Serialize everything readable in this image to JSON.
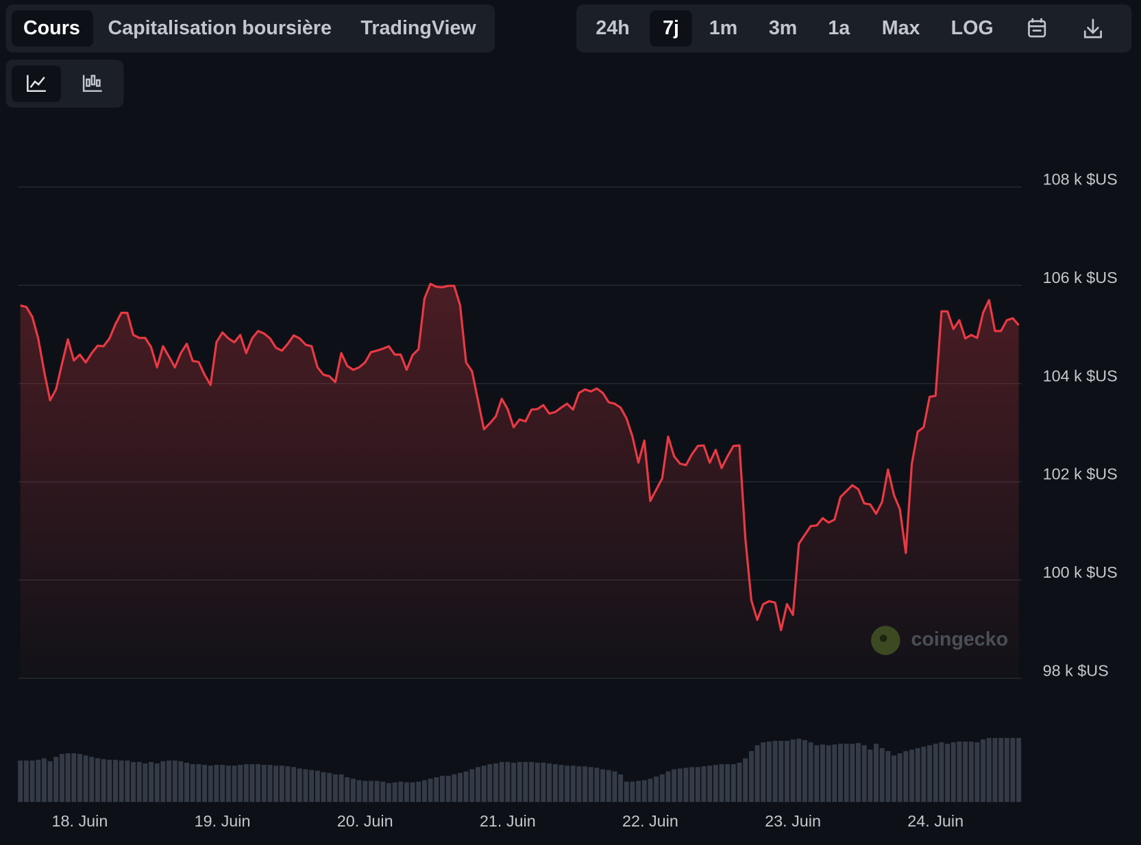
{
  "ui": {
    "tabs": [
      "Cours",
      "Capitalisation boursière",
      "TradingView"
    ],
    "ranges": [
      "24h",
      "7j",
      "1m",
      "3m",
      "1a",
      "Max",
      "LOG"
    ],
    "watermark": "coingecko"
  },
  "chart_data": {
    "type": "line",
    "categories": [
      null,
      null,
      null,
      null,
      null,
      null,
      null,
      null,
      null,
      null,
      "18. Juin",
      null,
      null,
      null,
      null,
      null,
      null,
      null,
      null,
      null,
      null,
      null,
      null,
      null,
      null,
      null,
      null,
      null,
      null,
      null,
      null,
      null,
      null,
      null,
      "19. Juin",
      null,
      null,
      null,
      null,
      null,
      null,
      null,
      null,
      null,
      null,
      null,
      null,
      null,
      null,
      null,
      null,
      null,
      null,
      null,
      null,
      null,
      null,
      null,
      "20. Juin",
      null,
      null,
      null,
      null,
      null,
      null,
      null,
      null,
      null,
      null,
      null,
      null,
      null,
      null,
      null,
      null,
      null,
      null,
      null,
      null,
      null,
      null,
      null,
      "21. Juin",
      null,
      null,
      null,
      null,
      null,
      null,
      null,
      null,
      null,
      null,
      null,
      null,
      null,
      null,
      null,
      null,
      null,
      null,
      null,
      null,
      null,
      null,
      null,
      "22. Juin",
      null,
      null,
      null,
      null,
      null,
      null,
      null,
      null,
      null,
      null,
      null,
      null,
      null,
      null,
      null,
      null,
      null,
      null,
      null,
      null,
      null,
      null,
      null,
      "23. Juin",
      null,
      null,
      null,
      null,
      null,
      null,
      null,
      null,
      null,
      null,
      null,
      null,
      null,
      null,
      null,
      null,
      null,
      null,
      null,
      null,
      null,
      null,
      null,
      "24. Juin",
      null,
      null,
      null,
      null,
      null,
      null,
      null,
      null,
      null,
      null,
      null,
      null,
      null,
      null
    ],
    "values": [
      105590,
      105560,
      105360,
      104920,
      104250,
      103660,
      103880,
      104400,
      104900,
      104470,
      104590,
      104430,
      104620,
      104770,
      104760,
      104920,
      105210,
      105440,
      105440,
      104990,
      104930,
      104930,
      104740,
      104330,
      104760,
      104550,
      104330,
      104620,
      104810,
      104460,
      104440,
      104180,
      103970,
      104840,
      105040,
      104920,
      104840,
      104990,
      104620,
      104920,
      105070,
      105020,
      104920,
      104730,
      104670,
      104810,
      104980,
      104920,
      104790,
      104760,
      104330,
      104180,
      104150,
      104030,
      104620,
      104360,
      104280,
      104330,
      104430,
      104640,
      104670,
      104710,
      104760,
      104590,
      104590,
      104280,
      104580,
      104700,
      105730,
      106030,
      105970,
      105960,
      105990,
      105990,
      105590,
      104430,
      104250,
      103660,
      103070,
      103190,
      103330,
      103690,
      103480,
      103110,
      103270,
      103230,
      103470,
      103480,
      103560,
      103390,
      103420,
      103510,
      103590,
      103470,
      103810,
      103880,
      103840,
      103900,
      103810,
      103620,
      103590,
      103510,
      103290,
      102920,
      102390,
      102840,
      101610,
      101840,
      102070,
      102920,
      102520,
      102370,
      102340,
      102560,
      102730,
      102740,
      102390,
      102650,
      102280,
      102520,
      102730,
      102740,
      100840,
      99590,
      99190,
      99510,
      99570,
      99540,
      98980,
      99510,
      99290,
      100740,
      100920,
      101100,
      101110,
      101260,
      101170,
      101230,
      101690,
      101810,
      101930,
      101850,
      101560,
      101540,
      101350,
      101590,
      102250,
      101730,
      101440,
      100550,
      102360,
      103020,
      103110,
      103730,
      103750,
      105470,
      105470,
      105110,
      105290,
      104920,
      104990,
      104930,
      105440,
      105700,
      105070,
      105070,
      105290,
      105330,
      105190
    ],
    "color": "#ea3943",
    "ylim": [
      98000,
      108000
    ],
    "yticks": [
      {
        "value": 98000,
        "label": "98 k $US"
      },
      {
        "value": 100000,
        "label": "100 k $US"
      },
      {
        "value": 102000,
        "label": "102 k $US"
      },
      {
        "value": 104000,
        "label": "104 k $US"
      },
      {
        "value": 106000,
        "label": "106 k $US"
      },
      {
        "value": 108000,
        "label": "108 k $US"
      }
    ],
    "grid": true,
    "volume": {
      "color": "#343b46",
      "ylim": [
        0,
        100
      ],
      "values": [
        57,
        57,
        57,
        58,
        60,
        56,
        62,
        66,
        67,
        67,
        66,
        64,
        62,
        60,
        59,
        58,
        58,
        57,
        57,
        55,
        55,
        53,
        55,
        53,
        56,
        57,
        57,
        56,
        54,
        52,
        52,
        51,
        50,
        51,
        51,
        50,
        50,
        51,
        52,
        52,
        52,
        51,
        51,
        50,
        50,
        49,
        48,
        46,
        45,
        44,
        43,
        41,
        40,
        38,
        38,
        34,
        32,
        30,
        29,
        29,
        29,
        28,
        26,
        27,
        28,
        27,
        27,
        28,
        30,
        32,
        34,
        36,
        36,
        38,
        40,
        42,
        45,
        48,
        50,
        52,
        53,
        55,
        55,
        54,
        55,
        55,
        55,
        54,
        54,
        53,
        52,
        51,
        50,
        50,
        49,
        49,
        48,
        47,
        45,
        44,
        42,
        38,
        28,
        28,
        29,
        30,
        32,
        35,
        38,
        42,
        45,
        46,
        47,
        48,
        48,
        49,
        50,
        51,
        52,
        52,
        52,
        54,
        60,
        70,
        78,
        82,
        83,
        84,
        84,
        84,
        86,
        87,
        85,
        82,
        78,
        79,
        78,
        79,
        80,
        80,
        80,
        81,
        78,
        72,
        80,
        74,
        70,
        64,
        67,
        70,
        72,
        74,
        76,
        78,
        80,
        82,
        80,
        82,
        83,
        83,
        83,
        82,
        86,
        88,
        88,
        88,
        88,
        88,
        88
      ]
    }
  }
}
